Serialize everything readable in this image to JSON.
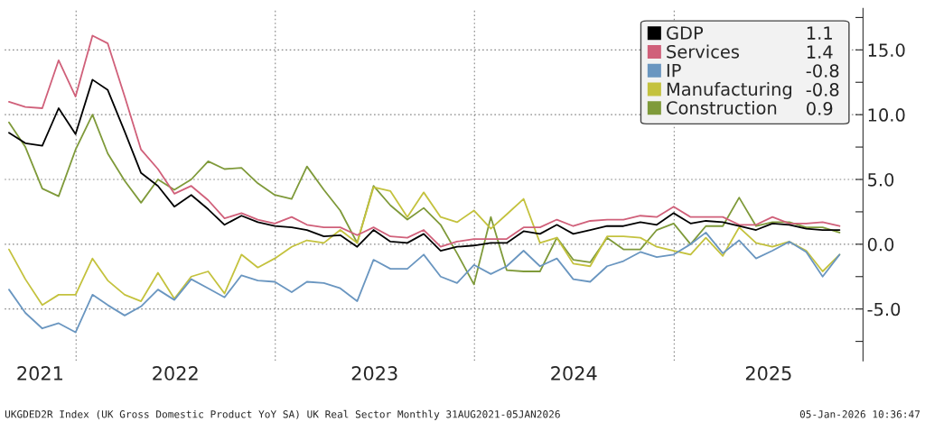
{
  "chart_data": {
    "type": "line",
    "x": [
      "2021-08-31",
      "2021-09-30",
      "2021-10-31",
      "2021-11-30",
      "2021-12-31",
      "2022-01-31",
      "2022-02-28",
      "2022-03-31",
      "2022-04-30",
      "2022-05-31",
      "2022-06-30",
      "2022-07-31",
      "2022-08-31",
      "2022-09-30",
      "2022-10-31",
      "2022-11-30",
      "2022-12-31",
      "2023-01-31",
      "2023-02-28",
      "2023-03-31",
      "2023-04-30",
      "2023-05-31",
      "2023-06-30",
      "2023-07-31",
      "2023-08-31",
      "2023-09-30",
      "2023-10-31",
      "2023-11-30",
      "2023-12-31",
      "2024-01-31",
      "2024-02-29",
      "2024-03-31",
      "2024-04-30",
      "2024-05-31",
      "2024-06-30",
      "2024-07-31",
      "2024-08-31",
      "2024-09-30",
      "2024-10-31",
      "2024-11-30",
      "2024-12-31",
      "2025-01-31",
      "2025-02-28",
      "2025-03-31",
      "2025-04-30",
      "2025-05-31",
      "2025-06-30",
      "2025-07-31",
      "2025-08-31",
      "2025-09-30",
      "2025-10-31"
    ],
    "series": [
      {
        "name": "GDP",
        "color": "#000000",
        "values": [
          8.6,
          7.8,
          7.6,
          10.5,
          8.5,
          12.7,
          11.9,
          8.7,
          5.5,
          4.5,
          2.9,
          3.8,
          2.7,
          1.5,
          2.2,
          1.7,
          1.4,
          1.3,
          1.1,
          0.6,
          0.7,
          -0.2,
          1.1,
          0.2,
          0.1,
          0.8,
          -0.5,
          -0.2,
          -0.1,
          0.1,
          0.1,
          1.0,
          0.8,
          1.5,
          0.8,
          1.1,
          1.4,
          1.4,
          1.7,
          1.5,
          2.4,
          1.6,
          1.8,
          1.7,
          1.4,
          1.1,
          1.6,
          1.5,
          1.2,
          1.1,
          1.1
        ]
      },
      {
        "name": "Services",
        "color": "#d0607a",
        "values": [
          11.0,
          10.6,
          10.5,
          14.2,
          11.4,
          16.1,
          15.5,
          11.4,
          7.3,
          5.8,
          3.9,
          4.5,
          3.4,
          2.0,
          2.4,
          1.9,
          1.6,
          2.1,
          1.5,
          1.3,
          1.3,
          0.7,
          1.3,
          0.6,
          0.5,
          1.1,
          -0.2,
          0.2,
          0.4,
          0.4,
          0.4,
          1.3,
          1.3,
          1.9,
          1.4,
          1.8,
          1.9,
          1.9,
          2.2,
          2.1,
          2.9,
          2.1,
          2.1,
          2.1,
          1.5,
          1.5,
          2.1,
          1.6,
          1.6,
          1.7,
          1.4
        ]
      },
      {
        "name": "IP",
        "color": "#6a96c0",
        "values": [
          -3.5,
          -5.3,
          -6.5,
          -6.1,
          -6.8,
          -3.9,
          -4.7,
          -5.5,
          -4.8,
          -3.5,
          -4.3,
          -2.7,
          -3.4,
          -4.1,
          -2.4,
          -2.8,
          -2.9,
          -3.7,
          -2.9,
          -3.0,
          -3.4,
          -4.4,
          -1.2,
          -1.9,
          -1.9,
          -0.8,
          -2.5,
          -3.0,
          -1.6,
          -2.3,
          -1.7,
          -0.5,
          -1.7,
          -1.1,
          -2.7,
          -2.9,
          -1.7,
          -1.3,
          -0.6,
          -1.0,
          -0.8,
          0.0,
          0.9,
          -0.7,
          0.3,
          -1.1,
          -0.5,
          0.2,
          -0.6,
          -2.5,
          -0.8
        ]
      },
      {
        "name": "Manufacturing",
        "color": "#c4c23e",
        "values": [
          -0.4,
          -2.7,
          -4.7,
          -3.9,
          -3.9,
          -1.1,
          -2.8,
          -3.9,
          -4.4,
          -2.2,
          -4.2,
          -2.5,
          -2.1,
          -3.8,
          -0.8,
          -1.8,
          -1.1,
          -0.2,
          0.3,
          0.1,
          1.1,
          0.1,
          4.4,
          4.1,
          2.1,
          4.0,
          2.1,
          1.7,
          2.6,
          1.2,
          2.3,
          3.5,
          0.1,
          0.5,
          -1.5,
          -1.7,
          0.6,
          0.6,
          0.5,
          -0.2,
          -0.5,
          -0.8,
          0.5,
          -0.9,
          1.3,
          0.1,
          -0.2,
          0.2,
          -0.5,
          -2.1,
          -0.8
        ]
      },
      {
        "name": "Construction",
        "color": "#7f9a3a",
        "values": [
          9.4,
          7.5,
          4.3,
          3.7,
          7.3,
          10.0,
          7.0,
          4.9,
          3.2,
          5.0,
          4.2,
          5.0,
          6.4,
          5.8,
          5.9,
          4.7,
          3.8,
          3.5,
          6.0,
          4.2,
          2.6,
          0.1,
          4.5,
          3.0,
          1.9,
          2.8,
          1.5,
          -0.7,
          -3.1,
          2.1,
          -2.0,
          -2.1,
          -2.1,
          0.5,
          -1.2,
          -1.4,
          0.5,
          -0.4,
          -0.4,
          1.1,
          1.6,
          0.0,
          1.4,
          1.4,
          3.6,
          1.4,
          1.7,
          1.7,
          1.3,
          1.3,
          0.9
        ]
      }
    ],
    "xlim": [
      "2021-08-23",
      "2025-12-13"
    ],
    "xticks": [
      {
        "value": "2022-01-01",
        "label": null
      },
      {
        "value": "2023-01-01",
        "label": null
      },
      {
        "value": "2024-01-01",
        "label": null
      },
      {
        "value": "2025-01-01",
        "label": null
      },
      {
        "value": "2021-10-27",
        "label": "2021"
      },
      {
        "value": "2022-07-02",
        "label": "2022"
      },
      {
        "value": "2023-07-02",
        "label": "2023"
      },
      {
        "value": "2024-07-01",
        "label": "2024"
      },
      {
        "value": "2025-06-23",
        "label": "2025"
      }
    ],
    "ylim": [
      -9.0,
      18.2
    ],
    "yticks": [
      {
        "value": -7.5,
        "label": null
      },
      {
        "value": -5,
        "label": "-5.0"
      },
      {
        "value": -2.5,
        "label": null
      },
      {
        "value": 0,
        "label": "0.0"
      },
      {
        "value": 2.5,
        "label": null
      },
      {
        "value": 5,
        "label": "5.0"
      },
      {
        "value": 7.5,
        "label": null
      },
      {
        "value": 10,
        "label": "10.0"
      },
      {
        "value": 12.5,
        "label": null
      },
      {
        "value": 15,
        "label": "15.0"
      },
      {
        "value": 17.5,
        "label": null
      }
    ],
    "grid": true,
    "legend": "top right",
    "line_style": "solid",
    "annotations": [
      "UKGDED2R Index (UK Gross Domestic Product YoY SA) UK Real Sector Monthly 31AUG2021-05JAN2026",
      "05-Jan-2026 10:36:47",
      "1.1",
      "1.4",
      "-0.8",
      "-0.8",
      "0.9"
    ]
  }
}
